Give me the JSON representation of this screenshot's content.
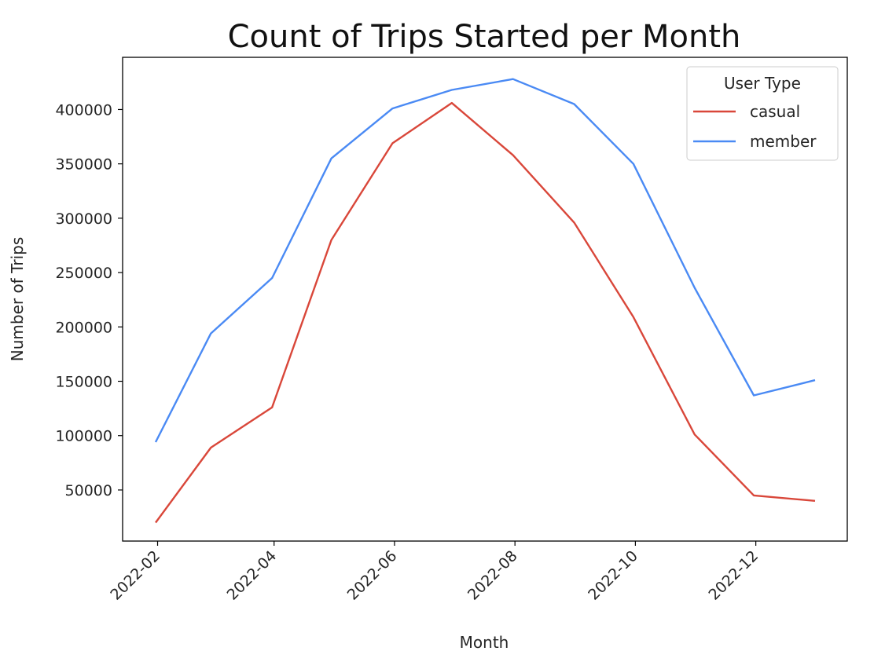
{
  "chart_data": {
    "type": "line",
    "title": "Count of Trips Started per Month",
    "xlabel": "Month",
    "ylabel": "Number of Trips",
    "x": [
      "2022-01-31",
      "2022-02-28",
      "2022-03-31",
      "2022-04-30",
      "2022-05-31",
      "2022-06-30",
      "2022-07-31",
      "2022-08-31",
      "2022-09-30",
      "2022-10-31",
      "2022-11-30",
      "2022-12-31"
    ],
    "x_ticks": [
      "2022-02",
      "2022-04",
      "2022-06",
      "2022-08",
      "2022-10",
      "2022-12"
    ],
    "y_ticks": [
      "50000",
      "100000",
      "150000",
      "200000",
      "250000",
      "300000",
      "350000",
      "400000"
    ],
    "ylim": [
      3000,
      448000
    ],
    "legend": {
      "title": "User Type",
      "position": "top-right"
    },
    "grid": false,
    "series": [
      {
        "name": "casual",
        "color": "#d9473a",
        "values": [
          20000,
          89000,
          126000,
          280000,
          369000,
          406000,
          358000,
          296000,
          209000,
          101000,
          45000,
          40000
        ]
      },
      {
        "name": "member",
        "color": "#4a8af4",
        "values": [
          94000,
          194000,
          245000,
          355000,
          401000,
          418000,
          428000,
          405000,
          350000,
          236000,
          137000,
          151000
        ]
      }
    ]
  }
}
